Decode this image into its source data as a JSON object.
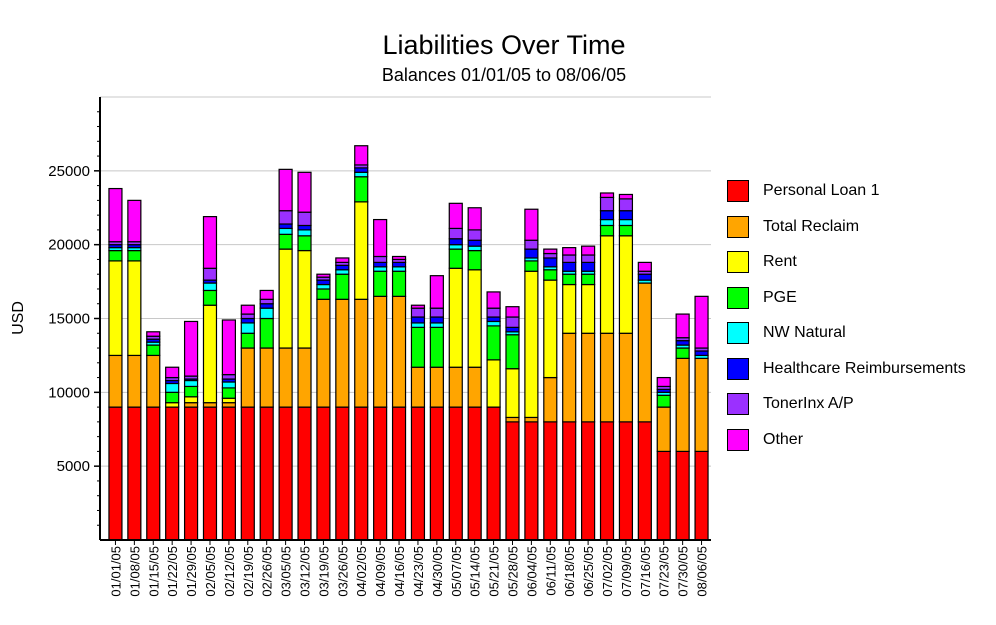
{
  "chart_data": {
    "type": "bar",
    "stacked": true,
    "title": "Liabilities Over Time",
    "subtitle": "Balances 01/01/05 to 08/06/05",
    "ylabel": "USD",
    "xlabel": "",
    "ylim": [
      0,
      30000
    ],
    "yticks": [
      5000,
      10000,
      15000,
      20000,
      25000
    ],
    "grid": true,
    "legend_position": "right",
    "categories": [
      "01/01/05",
      "01/08/05",
      "01/15/05",
      "01/22/05",
      "01/29/05",
      "02/05/05",
      "02/12/05",
      "02/19/05",
      "02/26/05",
      "03/05/05",
      "03/12/05",
      "03/19/05",
      "03/26/05",
      "04/02/05",
      "04/09/05",
      "04/16/05",
      "04/23/05",
      "04/30/05",
      "05/07/05",
      "05/14/05",
      "05/21/05",
      "05/28/05",
      "06/04/05",
      "06/11/05",
      "06/18/05",
      "06/25/05",
      "07/02/05",
      "07/09/05",
      "07/16/05",
      "07/23/05",
      "07/30/05",
      "08/06/05"
    ],
    "series": [
      {
        "name": "Personal Loan 1",
        "color": "#ff0000",
        "values": [
          9000,
          9000,
          9000,
          9000,
          9000,
          9000,
          9000,
          9000,
          9000,
          9000,
          9000,
          9000,
          9000,
          9000,
          9000,
          9000,
          9000,
          9000,
          9000,
          9000,
          9000,
          8000,
          8000,
          8000,
          8000,
          8000,
          8000,
          8000,
          8000,
          6000,
          6000,
          6000
        ]
      },
      {
        "name": "Total Reclaim",
        "color": "#ffa500",
        "values": [
          3500,
          3500,
          3500,
          0,
          300,
          300,
          300,
          4000,
          4000,
          4000,
          4000,
          7300,
          7300,
          7300,
          7500,
          7500,
          2700,
          2700,
          2700,
          2700,
          0,
          300,
          300,
          3000,
          6000,
          6000,
          6000,
          6000,
          9400,
          3000,
          6300,
          6300
        ]
      },
      {
        "name": "Rent",
        "color": "#ffff00",
        "values": [
          6400,
          6400,
          0,
          300,
          400,
          6600,
          300,
          0,
          0,
          6700,
          6600,
          0,
          0,
          6600,
          0,
          0,
          0,
          0,
          6700,
          6600,
          3200,
          3300,
          9900,
          6600,
          3300,
          3300,
          6600,
          6600,
          0,
          0,
          0,
          0
        ]
      },
      {
        "name": "PGE",
        "color": "#00ff00",
        "values": [
          700,
          700,
          700,
          700,
          700,
          1000,
          700,
          1000,
          2000,
          1000,
          1000,
          700,
          1700,
          1700,
          1700,
          1700,
          2700,
          2700,
          1300,
          1300,
          2300,
          2300,
          700,
          700,
          700,
          700,
          700,
          700,
          0,
          800,
          700,
          0
        ]
      },
      {
        "name": "NW Natural",
        "color": "#00ffff",
        "values": [
          200,
          200,
          200,
          600,
          400,
          500,
          400,
          700,
          700,
          400,
          400,
          300,
          300,
          300,
          300,
          300,
          300,
          300,
          300,
          300,
          300,
          200,
          200,
          200,
          200,
          200,
          400,
          400,
          200,
          200,
          200,
          200
        ]
      },
      {
        "name": "Healthcare Reimbursements",
        "color": "#0000ff",
        "values": [
          200,
          200,
          200,
          200,
          100,
          200,
          200,
          300,
          300,
          300,
          300,
          300,
          300,
          300,
          300,
          300,
          400,
          400,
          400,
          400,
          300,
          300,
          600,
          600,
          600,
          600,
          600,
          600,
          400,
          200,
          300,
          300
        ]
      },
      {
        "name": "TonerInx A/P",
        "color": "#9b30ff",
        "values": [
          200,
          200,
          200,
          200,
          200,
          800,
          300,
          300,
          300,
          900,
          900,
          200,
          200,
          200,
          400,
          200,
          600,
          600,
          700,
          700,
          600,
          700,
          600,
          300,
          500,
          500,
          900,
          800,
          200,
          200,
          200,
          200
        ]
      },
      {
        "name": "Other",
        "color": "#ff00ff",
        "values": [
          3600,
          2800,
          300,
          700,
          3700,
          3500,
          3700,
          600,
          600,
          2800,
          2700,
          200,
          300,
          1300,
          2500,
          200,
          200,
          2200,
          1700,
          1500,
          1100,
          700,
          2100,
          300,
          500,
          600,
          300,
          300,
          600,
          600,
          1600,
          3500
        ]
      }
    ]
  }
}
